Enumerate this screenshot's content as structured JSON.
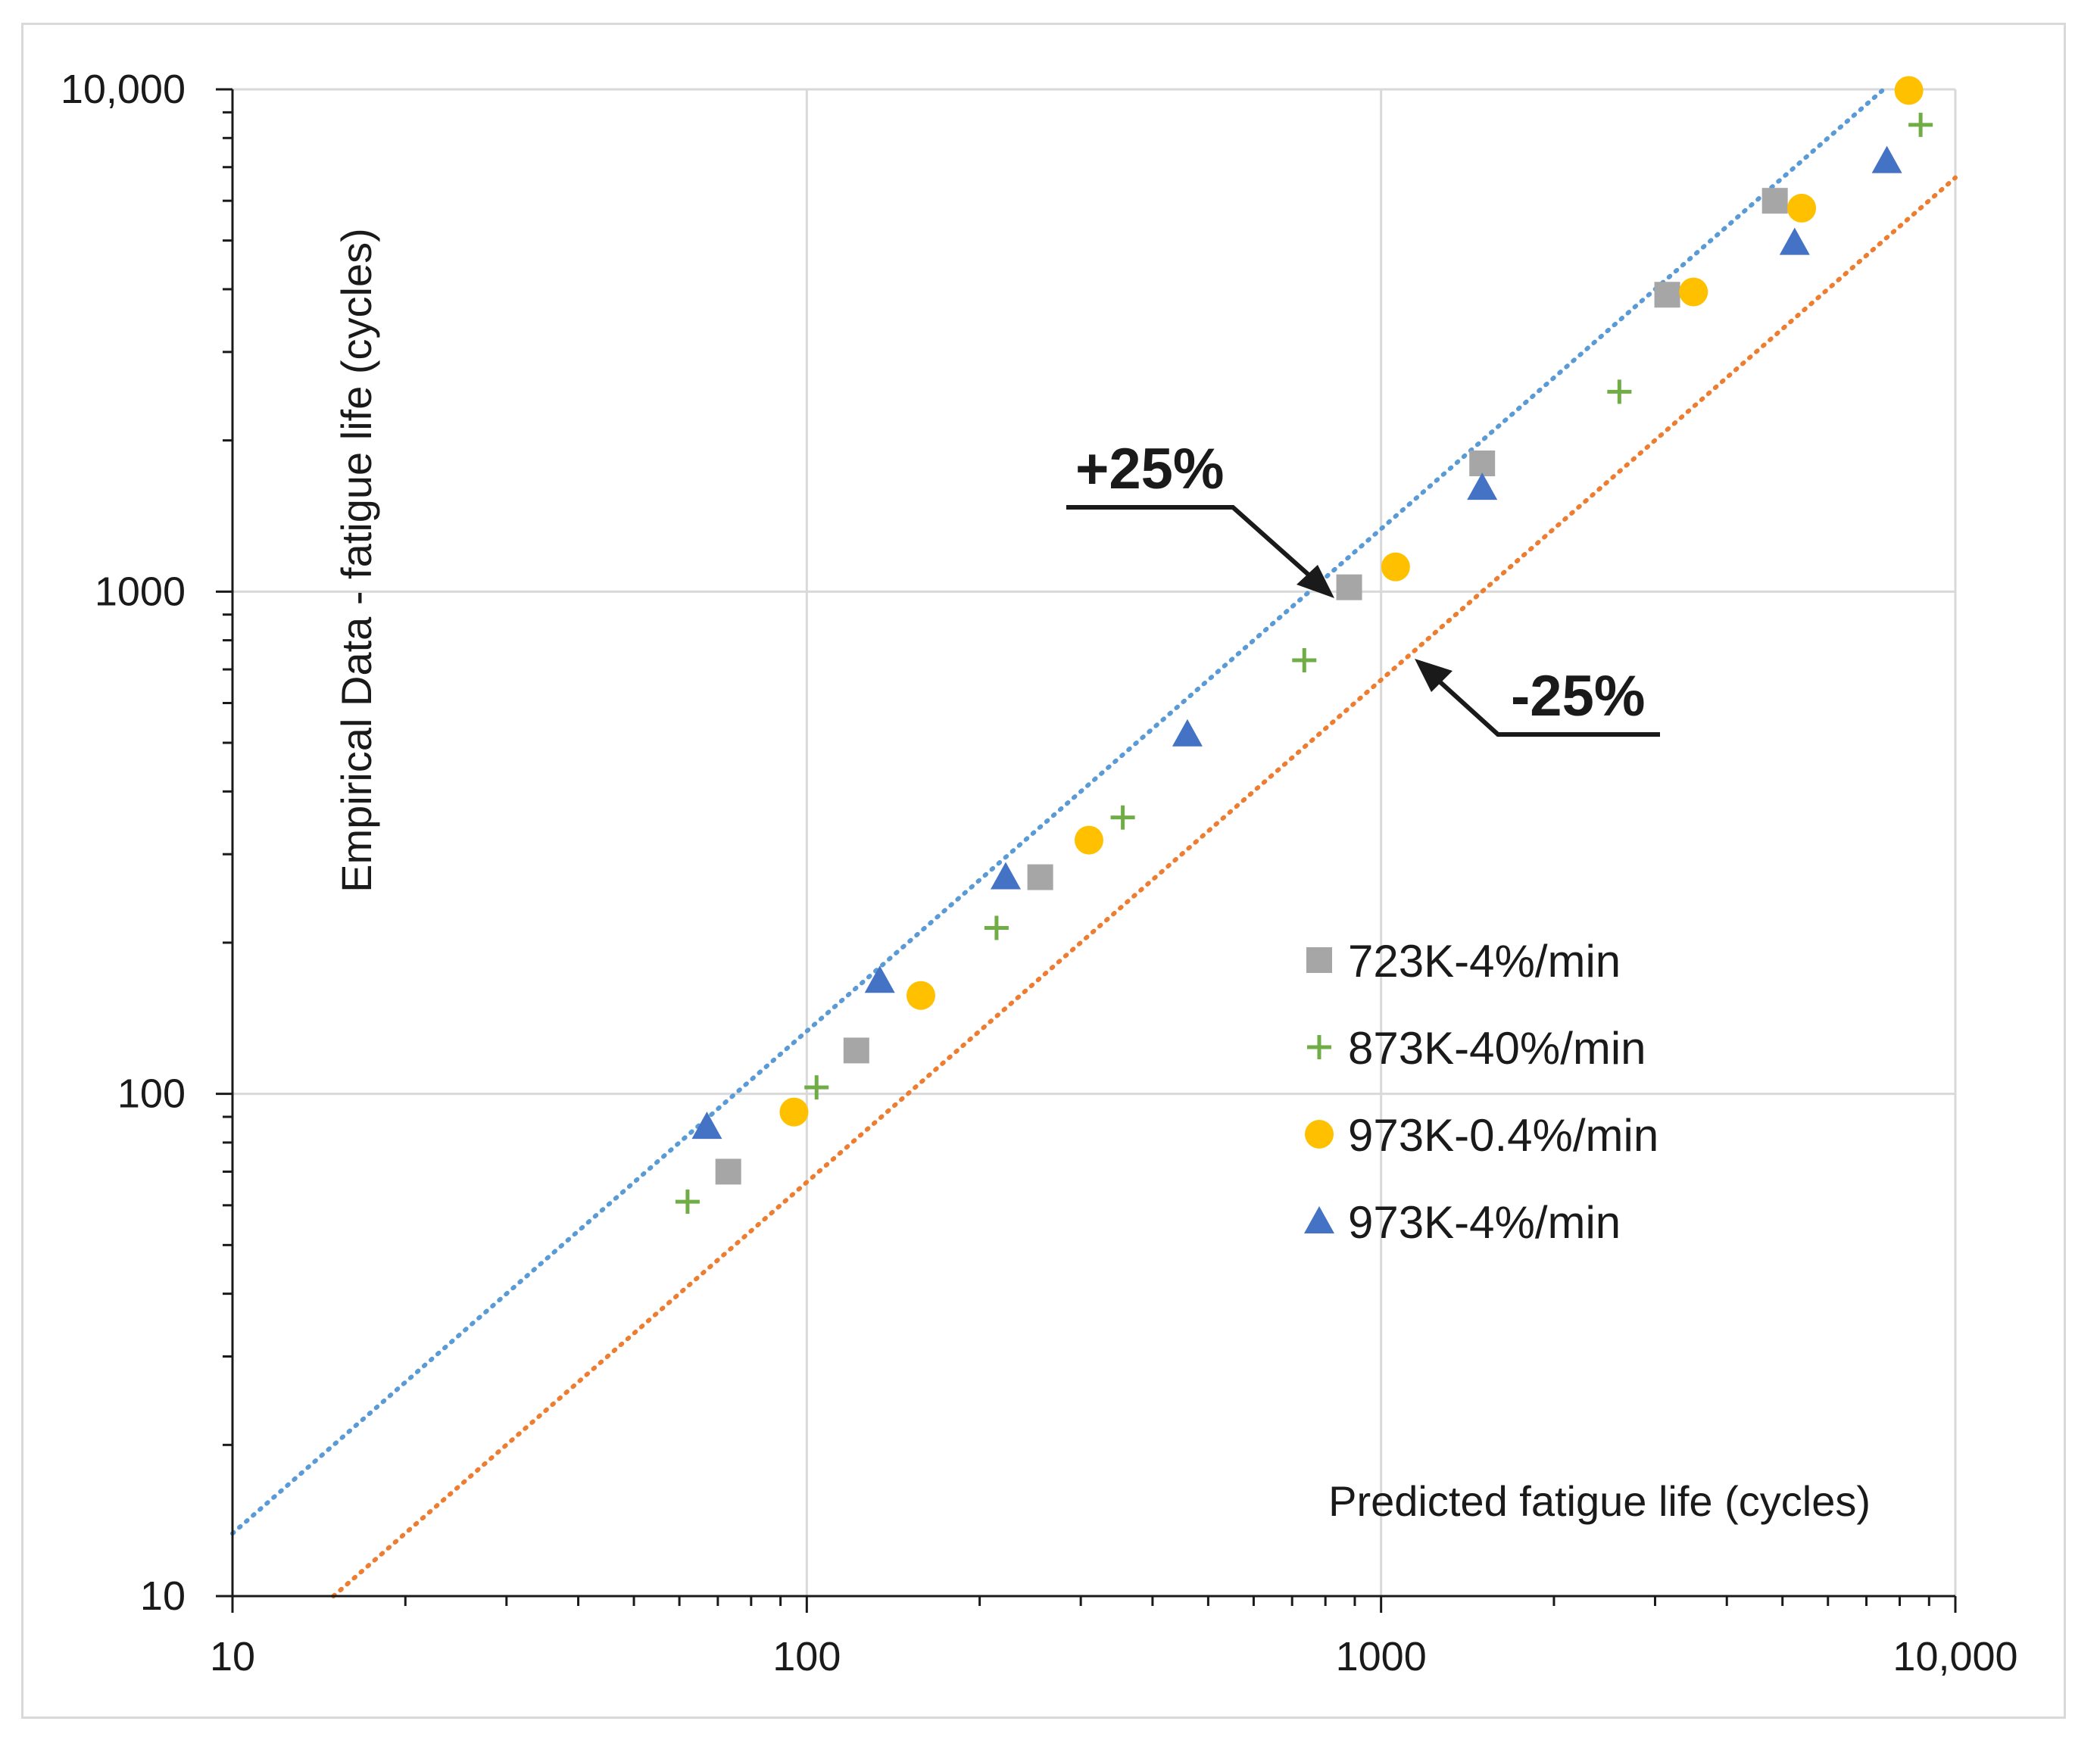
{
  "chart_data": {
    "type": "scatter",
    "title": "",
    "xlabel": "Predicted fatigue life (cycles)",
    "ylabel": "Empirical Data - fatigue life (cycles)",
    "xscale": "log",
    "yscale": "log",
    "xlim": [
      10,
      10000
    ],
    "ylim": [
      10,
      10000
    ],
    "grid": true,
    "x_tick_labels": [
      "10",
      "100",
      "1000",
      "10,000"
    ],
    "y_tick_labels": [
      "10",
      "100",
      "1000",
      "10,000"
    ],
    "legend_position": "right",
    "series": [
      {
        "name": "723K-4%/min",
        "marker": "square",
        "color": "#a6a6a6",
        "points": [
          [
            73,
            70
          ],
          [
            122,
            122
          ],
          [
            255,
            270
          ],
          [
            880,
            1020
          ],
          [
            1500,
            1800
          ],
          [
            3150,
            3900
          ],
          [
            4850,
            6000
          ]
        ]
      },
      {
        "name": "873K-40%/min",
        "marker": "plus",
        "color": "#70ad47",
        "points": [
          [
            62,
            61
          ],
          [
            104,
            103
          ],
          [
            214,
            214
          ],
          [
            355,
            355
          ],
          [
            735,
            730
          ],
          [
            2600,
            2500
          ],
          [
            8700,
            8500
          ]
        ]
      },
      {
        "name": "973K-0.4%/min",
        "marker": "circle",
        "color": "#ffc000",
        "points": [
          [
            95,
            92
          ],
          [
            158,
            157
          ],
          [
            310,
            320
          ],
          [
            1060,
            1120
          ],
          [
            3500,
            3950
          ],
          [
            5400,
            5800
          ],
          [
            8300,
            9950
          ]
        ]
      },
      {
        "name": "973K-4%/min",
        "marker": "triangle",
        "color": "#4472c4",
        "points": [
          [
            67,
            86
          ],
          [
            134,
            168
          ],
          [
            222,
            270
          ],
          [
            460,
            520
          ],
          [
            1500,
            1610
          ],
          [
            5250,
            4950
          ],
          [
            7600,
            7200
          ]
        ]
      }
    ],
    "reference_lines": [
      {
        "label": "+25%",
        "color": "#5b9bd5",
        "factor": 1.333
      },
      {
        "label": "-25%",
        "color": "#ed7d31",
        "factor": 0.667
      }
    ],
    "annotations": [
      {
        "text": "+25%",
        "target": [
          830,
          1000
        ]
      },
      {
        "text": "-25%",
        "target": [
          1090,
          760
        ]
      }
    ]
  }
}
